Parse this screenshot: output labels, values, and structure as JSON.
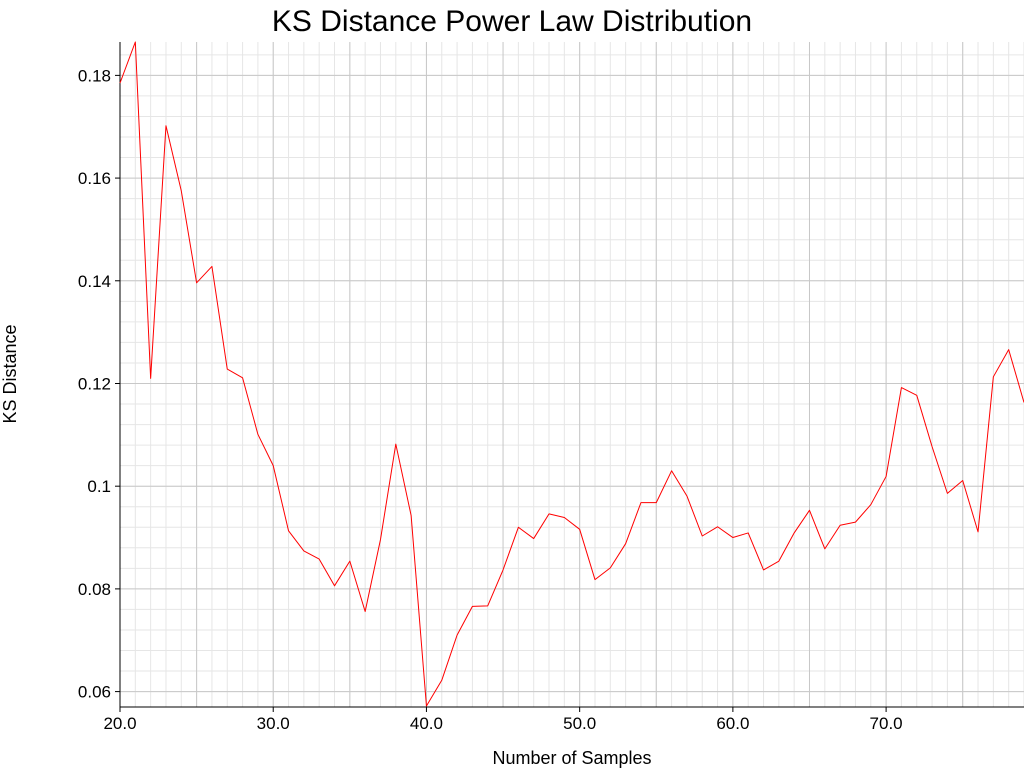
{
  "chart_data": {
    "type": "line",
    "title": "KS Distance Power Law Distribution",
    "xlabel": "Number of Samples",
    "ylabel": "KS Distance",
    "xlim": [
      20,
      79
    ],
    "ylim": [
      0.057,
      0.1865
    ],
    "grid": true,
    "x_ticks": [
      20,
      30,
      40,
      50,
      60,
      70
    ],
    "x_tick_labels": [
      "20.0",
      "30.0",
      "40.0",
      "50.0",
      "60.0",
      "70.0"
    ],
    "y_ticks": [
      0.06,
      0.08,
      0.1,
      0.12,
      0.14,
      0.16,
      0.18
    ],
    "y_tick_labels": [
      "0.06",
      "0.08",
      "0.1",
      "0.12",
      "0.14",
      "0.16",
      "0.18"
    ],
    "series": [
      {
        "color": "#ff0000",
        "x": [
          20,
          21,
          22,
          23,
          24,
          25,
          26,
          27,
          28,
          29,
          30,
          31,
          32,
          33,
          34,
          35,
          36,
          37,
          38,
          39,
          40,
          41,
          42,
          43,
          44,
          45,
          46,
          47,
          48,
          49,
          50,
          51,
          52,
          53,
          54,
          55,
          56,
          57,
          58,
          59,
          60,
          61,
          62,
          63,
          64,
          65,
          66,
          67,
          68,
          69,
          70,
          71,
          72,
          73,
          74,
          75,
          76,
          77,
          78,
          79
        ],
        "y": [
          0.1785,
          0.1865,
          0.121,
          0.1702,
          0.1575,
          0.1396,
          0.1428,
          0.1228,
          0.1211,
          0.1101,
          0.104,
          0.0913,
          0.0874,
          0.0858,
          0.0806,
          0.0854,
          0.0756,
          0.0896,
          0.1082,
          0.0943,
          0.0572,
          0.0622,
          0.071,
          0.0766,
          0.0767,
          0.0837,
          0.092,
          0.0898,
          0.0946,
          0.0939,
          0.0916,
          0.0818,
          0.0841,
          0.0888,
          0.0968,
          0.0968,
          0.103,
          0.0981,
          0.0903,
          0.0921,
          0.09,
          0.0909,
          0.0837,
          0.0854,
          0.0909,
          0.0953,
          0.0878,
          0.0924,
          0.093,
          0.0964,
          0.1019,
          0.1192,
          0.1177,
          0.1077,
          0.0986,
          0.1011,
          0.0911,
          0.1213,
          0.1266,
          0.1163
        ]
      }
    ]
  }
}
